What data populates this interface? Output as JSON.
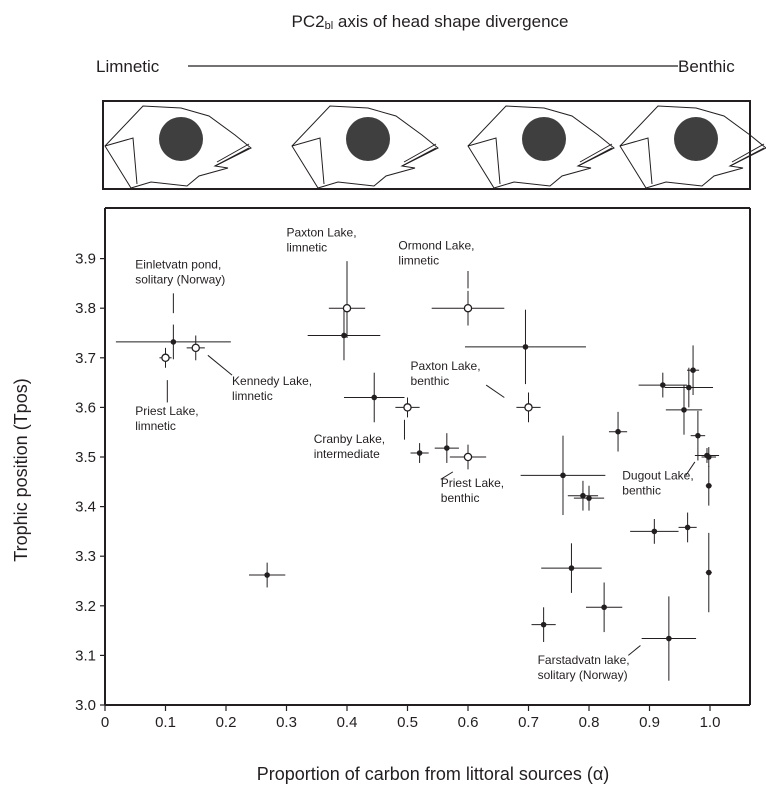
{
  "header": {
    "title_main": "PC2",
    "title_sub": "bl",
    "title_rest": " axis of head shape divergence",
    "left_label": "Limnetic",
    "right_label": "Benthic"
  },
  "chart_data": {
    "type": "scatter",
    "xlabel": "Proportion of carbon from littoral sources (α)",
    "ylabel": "Trophic position (Tpos)",
    "xlim": [
      0,
      1.1
    ],
    "ylim": [
      3.0,
      4.0
    ],
    "x_ticks": [
      "0",
      "0.1",
      "0.2",
      "0.3",
      "0.4",
      "0.5",
      "0.6",
      "0.7",
      "0.8",
      "0.9",
      "1.0"
    ],
    "y_ticks": [
      "3.0",
      "3.1",
      "3.2",
      "3.3",
      "3.4",
      "3.5",
      "3.6",
      "3.7",
      "3.8",
      "3.9"
    ],
    "grid": false,
    "marker_colors": {
      "filled": "#231f20",
      "open_stroke": "#231f20"
    },
    "points": [
      {
        "x": 0.1,
        "y": 3.7,
        "xerr": 0.01,
        "yerr": 0.02,
        "open": true
      },
      {
        "x": 0.113,
        "y": 3.732,
        "xerr": 0.095,
        "yerr": 0.035,
        "open": false
      },
      {
        "x": 0.15,
        "y": 3.72,
        "xerr": 0.015,
        "yerr": 0.025,
        "open": true
      },
      {
        "x": 0.268,
        "y": 3.262,
        "xerr": 0.03,
        "yerr": 0.025,
        "open": false
      },
      {
        "x": 0.4,
        "y": 3.8,
        "xerr": 0.03,
        "yerr": 0.06,
        "open": true
      },
      {
        "x": 0.395,
        "y": 3.745,
        "xerr": 0.06,
        "yerr": 0.05,
        "open": false
      },
      {
        "x": 0.445,
        "y": 3.62,
        "xerr": 0.05,
        "yerr": 0.05,
        "open": false
      },
      {
        "x": 0.5,
        "y": 3.6,
        "xerr": 0.02,
        "yerr": 0.02,
        "open": true
      },
      {
        "x": 0.52,
        "y": 3.508,
        "xerr": 0.015,
        "yerr": 0.02,
        "open": false
      },
      {
        "x": 0.565,
        "y": 3.518,
        "xerr": 0.02,
        "yerr": 0.03,
        "open": false
      },
      {
        "x": 0.6,
        "y": 3.8,
        "xerr": 0.06,
        "yerr": 0.035,
        "open": true
      },
      {
        "x": 0.6,
        "y": 3.5,
        "xerr": 0.03,
        "yerr": 0.025,
        "open": true
      },
      {
        "x": 0.695,
        "y": 3.722,
        "xerr": 0.1,
        "yerr": 0.075,
        "open": false
      },
      {
        "x": 0.7,
        "y": 3.6,
        "xerr": 0.02,
        "yerr": 0.03,
        "open": true
      },
      {
        "x": 0.757,
        "y": 3.463,
        "xerr": 0.07,
        "yerr": 0.08,
        "open": false
      },
      {
        "x": 0.771,
        "y": 3.276,
        "xerr": 0.05,
        "yerr": 0.05,
        "open": false
      },
      {
        "x": 0.79,
        "y": 3.422,
        "xerr": 0.025,
        "yerr": 0.03,
        "open": false
      },
      {
        "x": 0.8,
        "y": 3.417,
        "xerr": 0.025,
        "yerr": 0.025,
        "open": false
      },
      {
        "x": 0.725,
        "y": 3.162,
        "xerr": 0.02,
        "yerr": 0.035,
        "open": false
      },
      {
        "x": 0.825,
        "y": 3.197,
        "xerr": 0.03,
        "yerr": 0.05,
        "open": false
      },
      {
        "x": 0.848,
        "y": 3.551,
        "xerr": 0.015,
        "yerr": 0.04,
        "open": false
      },
      {
        "x": 0.908,
        "y": 3.35,
        "xerr": 0.04,
        "yerr": 0.025,
        "open": false
      },
      {
        "x": 0.922,
        "y": 3.645,
        "xerr": 0.04,
        "yerr": 0.025,
        "open": false
      },
      {
        "x": 0.932,
        "y": 3.134,
        "xerr": 0.045,
        "yerr": 0.085,
        "open": false
      },
      {
        "x": 0.957,
        "y": 3.595,
        "xerr": 0.03,
        "yerr": 0.05,
        "open": false
      },
      {
        "x": 0.963,
        "y": 3.358,
        "xerr": 0.015,
        "yerr": 0.03,
        "open": false
      },
      {
        "x": 0.965,
        "y": 3.64,
        "xerr": 0.04,
        "yerr": 0.04,
        "open": false
      },
      {
        "x": 0.972,
        "y": 3.675,
        "xerr": 0.01,
        "yerr": 0.05,
        "open": false
      },
      {
        "x": 0.98,
        "y": 3.543,
        "xerr": 0.012,
        "yerr": 0.05,
        "open": false
      },
      {
        "x": 0.995,
        "y": 3.503,
        "xerr": 0.02,
        "yerr": 0.015,
        "open": false
      },
      {
        "x": 0.998,
        "y": 3.5,
        "xerr": 0.012,
        "yerr": 0.02,
        "open": false
      },
      {
        "x": 0.998,
        "y": 3.442,
        "xerr": 0.005,
        "yerr": 0.04,
        "open": false
      },
      {
        "x": 0.998,
        "y": 3.267,
        "xerr": 0.005,
        "yerr": 0.08,
        "open": false
      }
    ],
    "annotations": [
      {
        "lines": [
          "Einletvatn pond,",
          "solitary (Norway)"
        ],
        "x": 0.05,
        "y": 3.88,
        "lx1": 0.113,
        "ly1": 3.83,
        "lx2": 0.113,
        "ly2": 3.79
      },
      {
        "lines": [
          "Paxton Lake,",
          "limnetic"
        ],
        "x": 0.3,
        "y": 3.945,
        "lx1": 0.4,
        "ly1": 3.895,
        "lx2": 0.4,
        "ly2": 3.84
      },
      {
        "lines": [
          "Ormond Lake,",
          "limnetic"
        ],
        "x": 0.485,
        "y": 3.918,
        "lx1": 0.6,
        "ly1": 3.875,
        "lx2": 0.6,
        "ly2": 3.84
      },
      {
        "lines": [
          "Kennedy Lake,",
          "limnetic"
        ],
        "x": 0.21,
        "y": 3.645,
        "lx1": 0.17,
        "ly1": 3.705,
        "lx2": 0.21,
        "ly2": 3.665
      },
      {
        "lines": [
          "Priest Lake,",
          "limnetic"
        ],
        "x": 0.05,
        "y": 3.585,
        "lx1": 0.103,
        "ly1": 3.655,
        "lx2": 0.103,
        "ly2": 3.61
      },
      {
        "lines": [
          "Paxton Lake,",
          "benthic"
        ],
        "x": 0.505,
        "y": 3.675,
        "lx1": 0.63,
        "ly1": 3.645,
        "lx2": 0.66,
        "ly2": 3.62
      },
      {
        "lines": [
          "Cranby Lake,",
          "intermediate"
        ],
        "x": 0.345,
        "y": 3.528,
        "lx1": 0.495,
        "ly1": 3.575,
        "lx2": 0.495,
        "ly2": 3.535
      },
      {
        "lines": [
          "Priest Lake,",
          "benthic"
        ],
        "x": 0.555,
        "y": 3.44,
        "lx1": 0.575,
        "ly1": 3.47,
        "lx2": 0.555,
        "ly2": 3.455
      },
      {
        "lines": [
          "Dugout Lake,",
          "benthic"
        ],
        "x": 0.855,
        "y": 3.455,
        "lx1": 0.975,
        "ly1": 3.49,
        "lx2": 0.96,
        "ly2": 3.463
      },
      {
        "lines": [
          "Farstadvatn lake,",
          "solitary (Norway)"
        ],
        "x": 0.715,
        "y": 3.083,
        "lx1": 0.865,
        "ly1": 3.1,
        "lx2": 0.885,
        "ly2": 3.12
      }
    ]
  }
}
